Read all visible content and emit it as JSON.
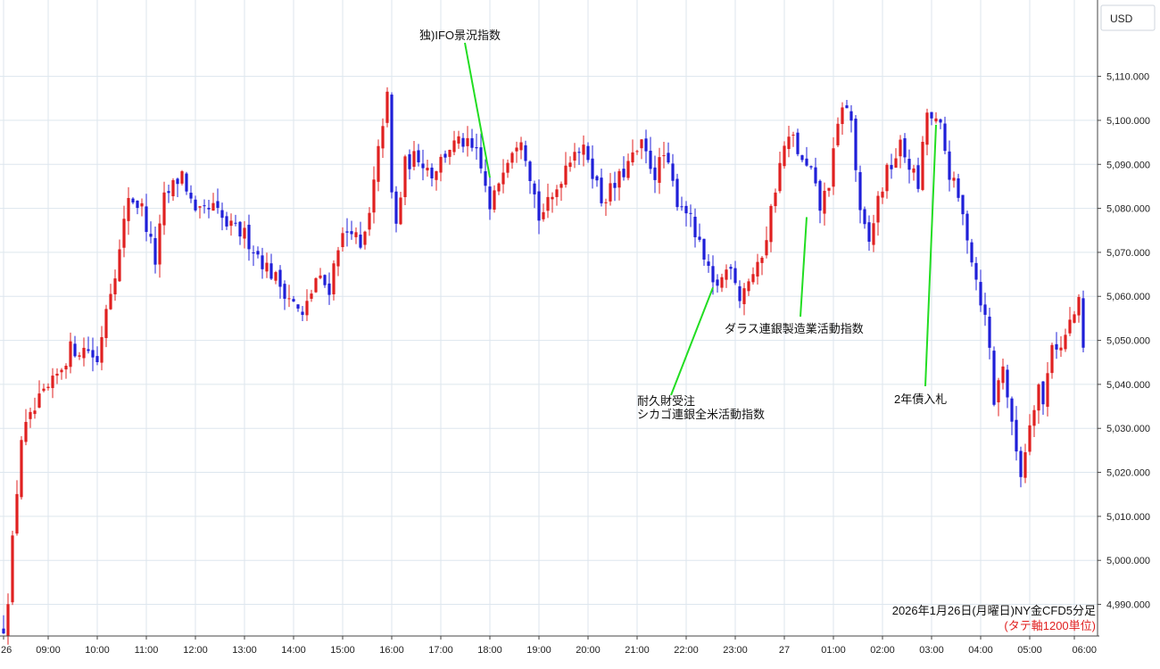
{
  "currency_label": "USD",
  "footer": {
    "title": "2026年1月26日(月曜日)NY金CFD5分足",
    "note": "(タテ軸1200単位)"
  },
  "colors": {
    "up": "#e02020",
    "down": "#1f1fd8",
    "annotation_line": "#22dd22",
    "grid": "#dde6ee",
    "note": "#e02020"
  },
  "chart_data": {
    "type": "candlestick",
    "title": "2026年1月26日(月曜日)NY金CFD5分足",
    "subtitle": "(タテ軸1200単位)",
    "ylabel": "USD",
    "ylim": [
      4982,
      5116
    ],
    "grid": true,
    "y_ticks": [
      "4,990.000",
      "5,000.000",
      "5,010.000",
      "5,020.000",
      "5,030.000",
      "5,040.000",
      "5,050.000",
      "5,060.000",
      "5,070.000",
      "5,080.000",
      "5,090.000",
      "5,100.000",
      "5,110.000"
    ],
    "y_tick_values": [
      4990,
      5000,
      5010,
      5020,
      5030,
      5040,
      5050,
      5060,
      5070,
      5080,
      5090,
      5100,
      5110
    ],
    "x_ticks": [
      "26",
      "09:00",
      "10:00",
      "11:00",
      "12:00",
      "13:00",
      "14:00",
      "15:00",
      "16:00",
      "17:00",
      "18:00",
      "19:00",
      "20:00",
      "21:00",
      "22:00",
      "23:00",
      "27",
      "01:00",
      "02:00",
      "03:00",
      "04:00",
      "05:00",
      "06:00"
    ],
    "x_tick_bar_index": [
      0,
      10,
      21,
      32,
      43,
      54,
      65,
      76,
      87,
      98,
      109,
      120,
      131,
      142,
      153,
      164,
      175,
      186,
      197,
      208,
      219,
      230,
      240
    ],
    "anchors": [
      [
        0,
        4985
      ],
      [
        1,
        4992
      ],
      [
        4,
        5028
      ],
      [
        8,
        5036
      ],
      [
        11,
        5040
      ],
      [
        15,
        5048
      ],
      [
        19,
        5048
      ],
      [
        21,
        5045
      ],
      [
        23,
        5058
      ],
      [
        26,
        5070
      ],
      [
        28,
        5083
      ],
      [
        31,
        5080
      ],
      [
        34,
        5068
      ],
      [
        36,
        5082
      ],
      [
        40,
        5088
      ],
      [
        43,
        5078
      ],
      [
        47,
        5080
      ],
      [
        50,
        5076
      ],
      [
        54,
        5074
      ],
      [
        58,
        5068
      ],
      [
        61,
        5064
      ],
      [
        64,
        5060
      ],
      [
        67,
        5055
      ],
      [
        70,
        5064
      ],
      [
        73,
        5062
      ],
      [
        75,
        5072
      ],
      [
        78,
        5076
      ],
      [
        80,
        5070
      ],
      [
        82,
        5078
      ],
      [
        85,
        5100
      ],
      [
        86,
        5105
      ],
      [
        87,
        5083
      ],
      [
        88,
        5076
      ],
      [
        90,
        5090
      ],
      [
        93,
        5092
      ],
      [
        96,
        5088
      ],
      [
        100,
        5094
      ],
      [
        103,
        5095
      ],
      [
        106,
        5092
      ],
      [
        108,
        5085
      ],
      [
        109,
        5079
      ],
      [
        112,
        5090
      ],
      [
        114,
        5094
      ],
      [
        116,
        5097
      ],
      [
        118,
        5088
      ],
      [
        120,
        5078
      ],
      [
        123,
        5082
      ],
      [
        126,
        5090
      ],
      [
        128,
        5094
      ],
      [
        131,
        5092
      ],
      [
        134,
        5082
      ],
      [
        137,
        5085
      ],
      [
        140,
        5090
      ],
      [
        143,
        5094
      ],
      [
        146,
        5088
      ],
      [
        148,
        5092
      ],
      [
        151,
        5082
      ],
      [
        153,
        5080
      ],
      [
        155,
        5074
      ],
      [
        157,
        5068
      ],
      [
        159,
        5062
      ],
      [
        161,
        5064
      ],
      [
        163,
        5068
      ],
      [
        165,
        5060
      ],
      [
        167,
        5064
      ],
      [
        169,
        5066
      ],
      [
        171,
        5074
      ],
      [
        173,
        5085
      ],
      [
        175,
        5094
      ],
      [
        177,
        5096
      ],
      [
        179,
        5090
      ],
      [
        181,
        5088
      ],
      [
        183,
        5080
      ],
      [
        185,
        5086
      ],
      [
        187,
        5098
      ],
      [
        188,
        5104
      ],
      [
        190,
        5100
      ],
      [
        192,
        5078
      ],
      [
        194,
        5072
      ],
      [
        196,
        5082
      ],
      [
        198,
        5088
      ],
      [
        201,
        5094
      ],
      [
        203,
        5090
      ],
      [
        205,
        5085
      ],
      [
        207,
        5102
      ],
      [
        208,
        5100
      ],
      [
        210,
        5098
      ],
      [
        212,
        5088
      ],
      [
        214,
        5082
      ],
      [
        216,
        5074
      ],
      [
        218,
        5064
      ],
      [
        220,
        5055
      ],
      [
        221,
        5048
      ],
      [
        222,
        5036
      ],
      [
        224,
        5045
      ],
      [
        226,
        5030
      ],
      [
        228,
        5020
      ],
      [
        229,
        5025
      ],
      [
        230,
        5032
      ],
      [
        232,
        5040
      ],
      [
        233,
        5035
      ],
      [
        235,
        5050
      ],
      [
        237,
        5048
      ],
      [
        239,
        5054
      ],
      [
        241,
        5058
      ],
      [
        242,
        5048
      ]
    ],
    "annotations": [
      {
        "label": "独)IFO景況指数",
        "bar_index": 109,
        "price": 5087
      },
      {
        "label": "耐久財受注",
        "label2": "シカゴ連銀全米活動指数",
        "bar_index": 159,
        "price": 5062
      },
      {
        "label": "ダラス連銀製造業活動指数",
        "bar_index": 180,
        "price": 5078
      },
      {
        "label": "2年債入札",
        "bar_index": 209,
        "price": 5099
      }
    ]
  }
}
